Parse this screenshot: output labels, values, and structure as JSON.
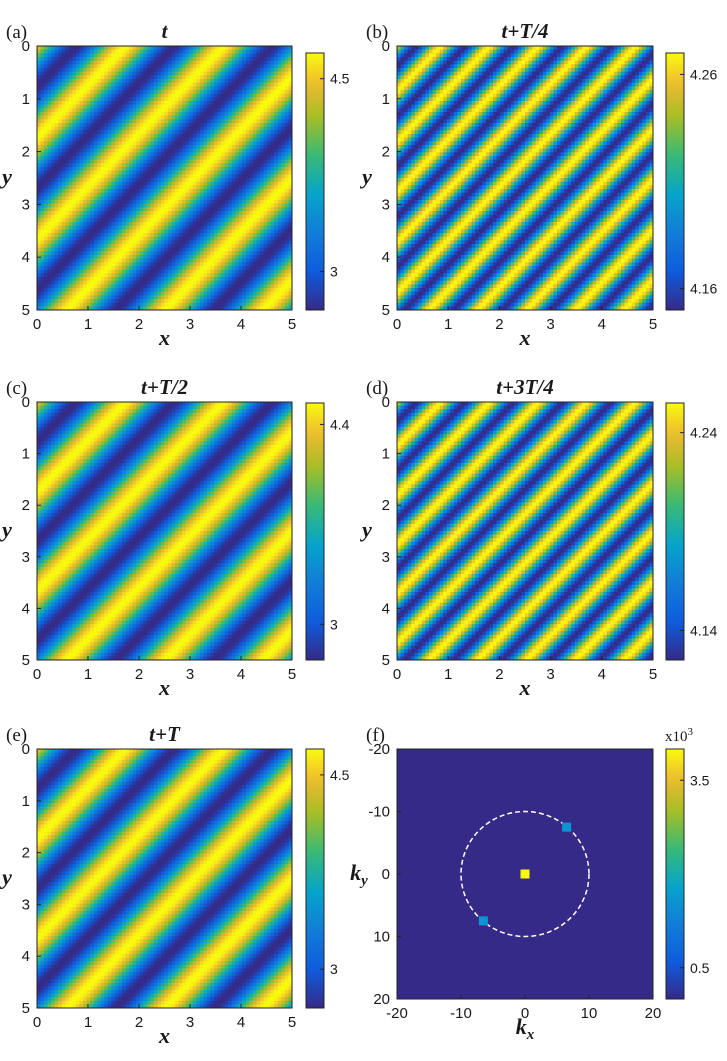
{
  "chart_data": [
    {
      "panel": "(a)",
      "type": "heatmap",
      "title": "t",
      "xlabel": "x",
      "ylabel": "y",
      "xlim": [
        0,
        5
      ],
      "ylim": [
        0,
        5
      ],
      "x_ticks": [
        "0",
        "1",
        "2",
        "3",
        "4",
        "5"
      ],
      "y_ticks": [
        "0",
        "1",
        "2",
        "3",
        "4",
        "5"
      ],
      "colorbar": {
        "min": 2.7,
        "max": 4.7,
        "ticks": [
          {
            "value": 3,
            "label": "3"
          },
          {
            "value": 4.5,
            "label": "4.5"
          }
        ]
      },
      "pattern": {
        "form": "diagonal stripes",
        "stripes_per_side": 5.2
      }
    },
    {
      "panel": "(b)",
      "type": "heatmap",
      "title": "t+T/4",
      "xlabel": "x",
      "ylabel": "y",
      "xlim": [
        0,
        5
      ],
      "ylim": [
        0,
        5
      ],
      "x_ticks": [
        "0",
        "1",
        "2",
        "3",
        "4",
        "5"
      ],
      "y_ticks": [
        "0",
        "1",
        "2",
        "3",
        "4",
        "5"
      ],
      "colorbar": {
        "min": 4.15,
        "max": 4.27,
        "ticks": [
          {
            "value": 4.16,
            "label": "4.16"
          },
          {
            "value": 4.26,
            "label": "4.26"
          }
        ]
      },
      "pattern": {
        "form": "diagonal stripes",
        "stripes_per_side": 10.5
      }
    },
    {
      "panel": "(c)",
      "type": "heatmap",
      "title": "t+T/2",
      "xlabel": "x",
      "ylabel": "y",
      "xlim": [
        0,
        5
      ],
      "ylim": [
        0,
        5
      ],
      "x_ticks": [
        "0",
        "1",
        "2",
        "3",
        "4",
        "5"
      ],
      "y_ticks": [
        "0",
        "1",
        "2",
        "3",
        "4",
        "5"
      ],
      "colorbar": {
        "min": 2.75,
        "max": 4.55,
        "ticks": [
          {
            "value": 3,
            "label": "3"
          },
          {
            "value": 4.4,
            "label": "4.4"
          }
        ]
      },
      "pattern": {
        "form": "diagonal stripes",
        "stripes_per_side": 5.2
      }
    },
    {
      "panel": "(d)",
      "type": "heatmap",
      "title": "t+3T/4",
      "xlabel": "x",
      "ylabel": "y",
      "xlim": [
        0,
        5
      ],
      "ylim": [
        0,
        5
      ],
      "x_ticks": [
        "0",
        "1",
        "2",
        "3",
        "4",
        "5"
      ],
      "y_ticks": [
        "0",
        "1",
        "2",
        "3",
        "4",
        "5"
      ],
      "colorbar": {
        "min": 4.125,
        "max": 4.255,
        "ticks": [
          {
            "value": 4.14,
            "label": "4.14"
          },
          {
            "value": 4.24,
            "label": "4.24"
          }
        ]
      },
      "pattern": {
        "form": "diagonal stripes",
        "stripes_per_side": 10.5
      }
    },
    {
      "panel": "(e)",
      "type": "heatmap",
      "title": "t+T",
      "xlabel": "x",
      "ylabel": "y",
      "xlim": [
        0,
        5
      ],
      "ylim": [
        0,
        5
      ],
      "x_ticks": [
        "0",
        "1",
        "2",
        "3",
        "4",
        "5"
      ],
      "y_ticks": [
        "0",
        "1",
        "2",
        "3",
        "4",
        "5"
      ],
      "colorbar": {
        "min": 2.7,
        "max": 4.7,
        "ticks": [
          {
            "value": 3,
            "label": "3"
          },
          {
            "value": 4.5,
            "label": "4.5"
          }
        ]
      },
      "pattern": {
        "form": "diagonal stripes",
        "stripes_per_side": 5.2
      }
    },
    {
      "panel": "(f)",
      "type": "heatmap",
      "xlabel": "k",
      "xlabel_sub": "x",
      "ylabel": "k",
      "ylabel_sub": "y",
      "xlim": [
        -20,
        20
      ],
      "ylim": [
        -20,
        20
      ],
      "x_ticks": [
        "-20",
        "-10",
        "0",
        "10",
        "20"
      ],
      "y_ticks": [
        "-20",
        "-10",
        "0",
        "10",
        "20"
      ],
      "y_tick_values": [
        -20,
        -10,
        0,
        10,
        20
      ],
      "colorbar": {
        "min": 0,
        "max": 4,
        "multiplier": "x10",
        "multiplier_exp": "3",
        "ticks": [
          {
            "value": 0.5,
            "label": "0.5"
          },
          {
            "value": 3.5,
            "label": "3.5"
          }
        ]
      },
      "points": [
        {
          "kx": 0,
          "ky": 0,
          "value": 4.0
        },
        {
          "kx": 6.5,
          "ky": -7.5,
          "value": 1.6
        },
        {
          "kx": -6.5,
          "ky": 7.5,
          "value": 1.6
        }
      ],
      "circle": {
        "cx": 0,
        "cy": 0,
        "radius": 10
      }
    }
  ]
}
